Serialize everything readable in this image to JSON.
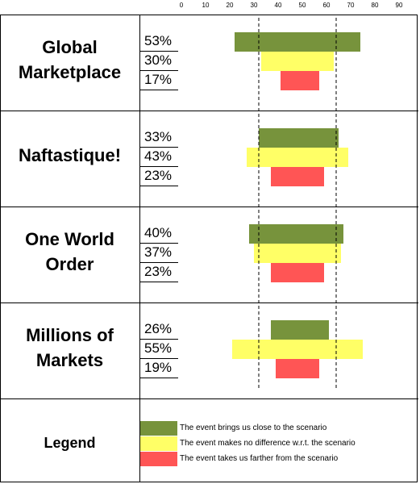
{
  "colors": {
    "closer": "#77933c",
    "no_difference": "#ffff66",
    "farther": "#ff5555"
  },
  "legend": {
    "title": "Legend",
    "items": [
      {
        "key": "closer",
        "label": "The event brings us close to the scenario"
      },
      {
        "key": "no_difference",
        "label": "The event makes no difference w.r.t. the scenario"
      },
      {
        "key": "farther",
        "label": "The event takes us farther from the scenario"
      }
    ]
  },
  "scenarios": [
    {
      "name_lines": [
        "Global",
        "Marketplace"
      ],
      "percents": [
        "53%",
        "30%",
        "17%"
      ]
    },
    {
      "name_lines": [
        "Naftastique!"
      ],
      "percents": [
        "33%",
        "43%",
        "23%"
      ]
    },
    {
      "name_lines": [
        "One World",
        "Order"
      ],
      "percents": [
        "40%",
        "37%",
        "23%"
      ]
    },
    {
      "name_lines": [
        "Millions of",
        "Markets"
      ],
      "percents": [
        "26%",
        "55%",
        "19%"
      ]
    }
  ],
  "chart_data": {
    "type": "bar",
    "orientation": "horizontal",
    "axis": {
      "ticks": [
        0,
        10,
        20,
        30,
        40,
        50,
        60,
        70,
        80,
        90
      ],
      "xlim": [
        0,
        90
      ],
      "position": "top"
    },
    "reference_lines": [
      32,
      64
    ],
    "categories": [
      "Global Marketplace",
      "Naftastique!",
      "One World Order",
      "Millions of Markets"
    ],
    "series": [
      {
        "name": "The event brings us close to the scenario",
        "key": "closer",
        "ranges": [
          [
            22,
            74
          ],
          [
            32,
            65
          ],
          [
            28,
            67
          ],
          [
            37,
            61
          ]
        ]
      },
      {
        "name": "The event makes no difference w.r.t. the scenario",
        "key": "no_difference",
        "ranges": [
          [
            33,
            63
          ],
          [
            27,
            69
          ],
          [
            30,
            66
          ],
          [
            21,
            75
          ]
        ]
      },
      {
        "name": "The event takes us farther from the scenario",
        "key": "farther",
        "ranges": [
          [
            41,
            57
          ],
          [
            37,
            59
          ],
          [
            37,
            59
          ],
          [
            39,
            57
          ]
        ]
      }
    ]
  }
}
